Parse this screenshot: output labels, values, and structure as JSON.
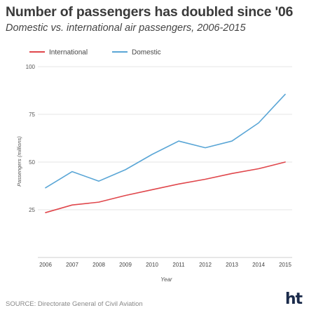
{
  "header": {
    "title": "Number of passengers has doubled since '06",
    "subtitle": "Domestic vs. international air passengers, 2006-2015"
  },
  "footer": {
    "source": "SOURCE: Directorate General of Civil Aviation",
    "logo": "ht"
  },
  "chart_data": {
    "type": "line",
    "x": [
      "2006",
      "2007",
      "2008",
      "2009",
      "2010",
      "2011",
      "2012",
      "2013",
      "2014",
      "2015"
    ],
    "series": [
      {
        "name": "International",
        "color": "#e0474c",
        "values": [
          23.5,
          27.5,
          29,
          32.5,
          35.5,
          38.5,
          41,
          44,
          46.5,
          50
        ]
      },
      {
        "name": "Domestic",
        "color": "#5aa6d6",
        "values": [
          36.5,
          45,
          40,
          46,
          54,
          61,
          57.5,
          61,
          70.5,
          85.5
        ]
      }
    ],
    "yticks": [
      "25",
      "50",
      "75",
      "100"
    ],
    "ytick_values": [
      25,
      50,
      75,
      100
    ],
    "xlabel": "Year",
    "ylabel": "Passengers (millions)",
    "ylim": [
      0,
      100
    ],
    "grid": true,
    "legend": "top-left"
  }
}
